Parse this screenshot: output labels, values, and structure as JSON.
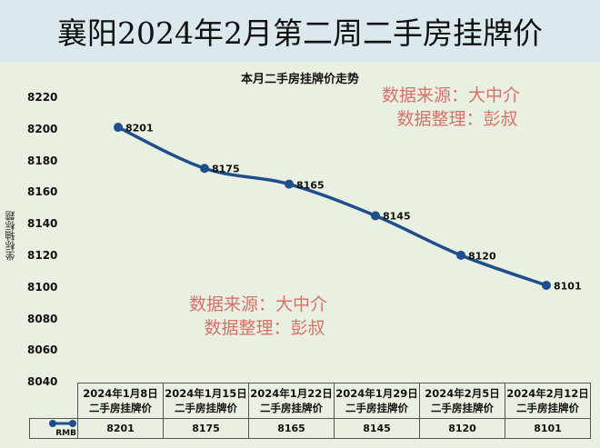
{
  "title": "襄阳2024年2月第二周二手房挂牌价",
  "chart_data": {
    "type": "line",
    "title": "本月二手房挂牌价走势",
    "xlabel": "",
    "ylabel": "坐标轴标题",
    "ylim": [
      8040,
      8220
    ],
    "y_ticks": [
      "8220",
      "8200",
      "8180",
      "8160",
      "8140",
      "8120",
      "8100",
      "8080",
      "8060",
      "8040"
    ],
    "grid": false,
    "legend_position": "data-table",
    "categories": [
      "2024年1月8日二手房挂牌价",
      "2024年1月15日二手房挂牌价",
      "2024年1月22日二手房挂牌价",
      "2024年1月29日二手房挂牌价",
      "2024年2月5日二手房挂牌价",
      "2024年2月12日二手房挂牌价"
    ],
    "series": [
      {
        "name": "RMB",
        "color": "#1f4e8c",
        "values": [
          8201,
          8175,
          8165,
          8145,
          8120,
          8101
        ]
      }
    ]
  },
  "axis": {
    "ticks": [
      {
        "label": "8220",
        "value": 8220
      },
      {
        "label": "8200",
        "value": 8200
      },
      {
        "label": "8180",
        "value": 8180
      },
      {
        "label": "8160",
        "value": 8160
      },
      {
        "label": "8140",
        "value": 8140
      },
      {
        "label": "8120",
        "value": 8120
      },
      {
        "label": "8100",
        "value": 8100
      },
      {
        "label": "8080",
        "value": 8080
      },
      {
        "label": "8060",
        "value": 8060
      },
      {
        "label": "8040",
        "value": 8040
      }
    ],
    "title": "坐标轴标题"
  },
  "points": [
    {
      "label": "8201"
    },
    {
      "label": "8175"
    },
    {
      "label": "8165"
    },
    {
      "label": "8145"
    },
    {
      "label": "8120"
    },
    {
      "label": "8101"
    }
  ],
  "table": {
    "headers": [
      {
        "line1": "2024年1月8日",
        "line2": "二手房挂牌价"
      },
      {
        "line1": "2024年1月15日",
        "line2": "二手房挂牌价"
      },
      {
        "line1": "2024年1月22日",
        "line2": "二手房挂牌价"
      },
      {
        "line1": "2024年1月29日",
        "line2": "二手房挂牌价"
      },
      {
        "line1": "2024年2月5日",
        "line2": "二手房挂牌价"
      },
      {
        "line1": "2024年2月12日",
        "line2": "二手房挂牌价"
      }
    ],
    "series_label": "RMB",
    "values": [
      "8201",
      "8175",
      "8165",
      "8145",
      "8120",
      "8101"
    ]
  },
  "watermarks": [
    {
      "line1": "数据来源：大中介",
      "line2": "数据整理：彭叔"
    },
    {
      "line1": "数据来源：大中介",
      "line2": "数据整理：彭叔"
    }
  ],
  "colors": {
    "line": "#1f4e8c",
    "watermark": "#d9706a",
    "title_band": "#dbe9ef",
    "background": "#e9f0e1"
  }
}
